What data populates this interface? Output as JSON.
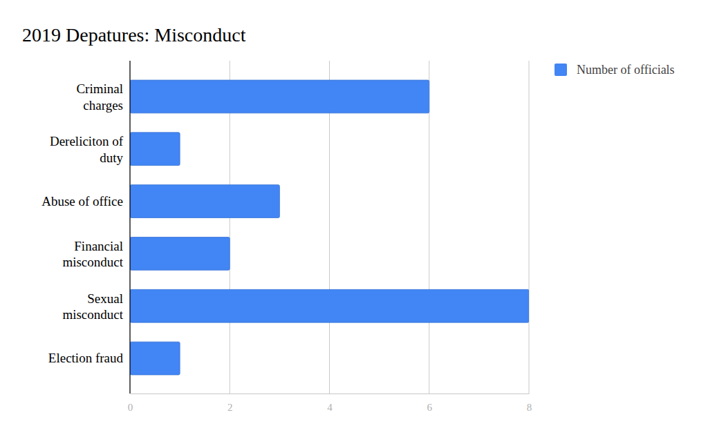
{
  "chart_data": {
    "type": "bar",
    "title": "2019 Depatures: Misconduct",
    "orientation": "horizontal",
    "categories": [
      "Criminal charges",
      "Dereliciton of duty",
      "Abuse of office",
      "Financial misconduct",
      "Sexual misconduct",
      "Election fraud"
    ],
    "series": [
      {
        "name": "Number of officials",
        "color": "#4285f4",
        "values": [
          6,
          1,
          3,
          2,
          8,
          1
        ]
      }
    ],
    "xlim": [
      0,
      8
    ],
    "xticks": [
      0,
      2,
      4,
      6,
      8
    ],
    "grid": true,
    "legend": "top-right"
  }
}
